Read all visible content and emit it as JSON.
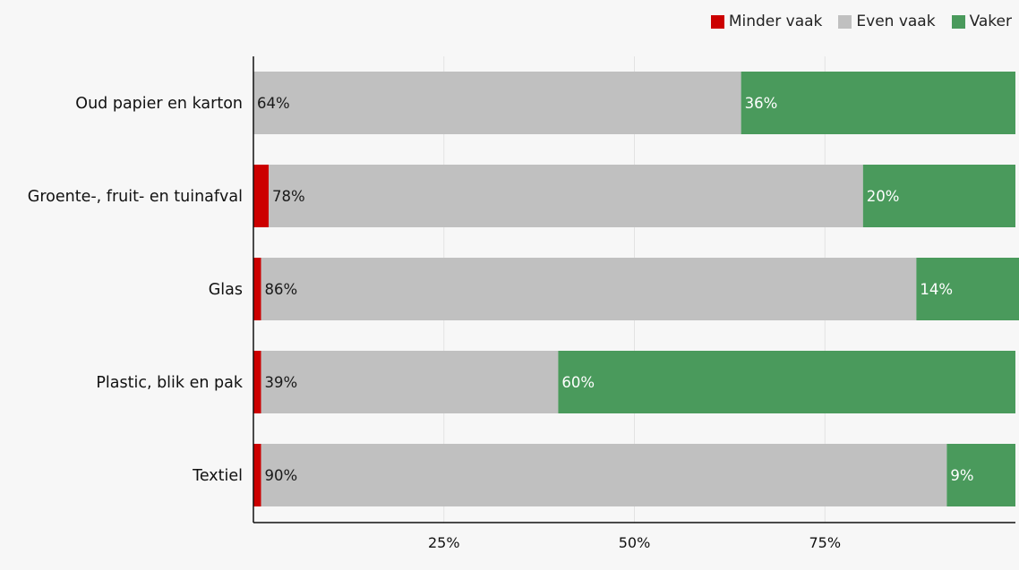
{
  "chart_data": {
    "type": "bar",
    "orientation": "horizontal",
    "stacked": true,
    "title": "",
    "xlabel": "",
    "ylabel": "",
    "xlim": [
      0,
      100
    ],
    "ticks": [
      "25%",
      "50%",
      "75%"
    ],
    "tick_values": [
      25,
      50,
      75
    ],
    "grid": true,
    "legend_position": "top-right",
    "categories": [
      "Oud papier en karton",
      "Groente-, fruit- en tuinafval",
      "Glas",
      "Plastic, blik en pak",
      "Textiel"
    ],
    "series": [
      {
        "name": "Minder vaak",
        "color": "#cc0000",
        "values": [
          0,
          2,
          1,
          1,
          1
        ],
        "labels": [
          "",
          "",
          "",
          "",
          ""
        ]
      },
      {
        "name": "Even vaak",
        "color": "#c0c0c0",
        "values": [
          64,
          78,
          86,
          39,
          90
        ],
        "labels": [
          "64%",
          "78%",
          "86%",
          "39%",
          "90%"
        ]
      },
      {
        "name": "Vaker",
        "color": "#4a9a5c",
        "values": [
          36,
          20,
          14,
          60,
          9
        ],
        "labels": [
          "36%",
          "20%",
          "14%",
          "60%",
          "9%"
        ]
      }
    ]
  }
}
